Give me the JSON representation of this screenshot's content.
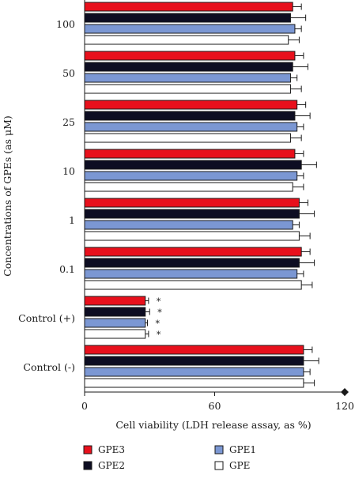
{
  "chart_data": {
    "type": "bar",
    "orientation": "horizontal",
    "xlabel": "Cell viability (LDH release assay, as %)",
    "ylabel": "Concentrations of GPEs (as μM)",
    "xlim": [
      0,
      120
    ],
    "xticks": [
      "0",
      "60",
      "120"
    ],
    "grid": false,
    "legend_position": "bottom",
    "categories": [
      "100",
      "50",
      "25",
      "10",
      "1",
      "0.1",
      "Control (+)",
      "Control (-)"
    ],
    "series": [
      {
        "name": "GPE3",
        "color": "#e8101c",
        "values": [
          96,
          97,
          98,
          97,
          99,
          100,
          28,
          101
        ],
        "errors": [
          4,
          4,
          4,
          4,
          4,
          4,
          1.5,
          4
        ]
      },
      {
        "name": "GPE2",
        "color": "#0d0d22",
        "values": [
          95,
          96,
          97,
          100,
          99,
          99,
          28,
          101
        ],
        "errors": [
          7,
          7,
          7,
          7,
          7,
          7,
          2,
          7
        ]
      },
      {
        "name": "GPE1",
        "color": "#7b97d3",
        "values": [
          97,
          95,
          98,
          98,
          96,
          98,
          28,
          101
        ],
        "errors": [
          3,
          3,
          3,
          3,
          3,
          3,
          1,
          3
        ]
      },
      {
        "name": "GPE",
        "color": "#ffffff",
        "values": [
          94,
          95,
          95,
          96,
          99,
          100,
          28,
          101
        ],
        "errors": [
          5,
          5,
          5,
          5,
          5,
          5,
          1.5,
          5
        ]
      }
    ],
    "annotations": [
      {
        "category": "Control (+)",
        "series": "GPE3",
        "text": "*"
      },
      {
        "category": "Control (+)",
        "series": "GPE2",
        "text": "*"
      },
      {
        "category": "Control (+)",
        "series": "GPE1",
        "text": "*"
      },
      {
        "category": "Control (+)",
        "series": "GPE",
        "text": "*"
      }
    ]
  }
}
